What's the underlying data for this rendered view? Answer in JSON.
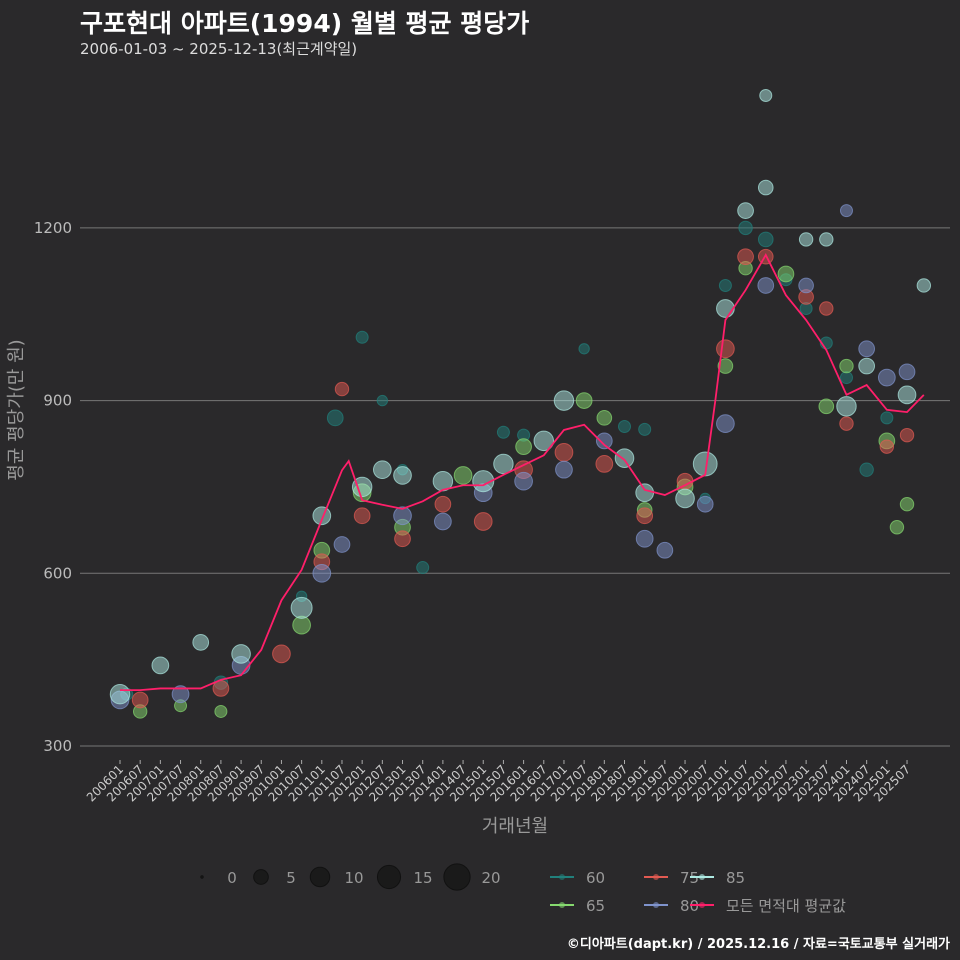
{
  "title": "구포현대 아파트(1994) 월별 평균 평당가",
  "subtitle": "2006-01-03 ~ 2025-12-13(최근계약일)",
  "caption": "©디아파트(dapt.kr) / 2025.12.16 / 자료=국토교통부 실거래가",
  "chart_data": {
    "type": "scatter",
    "title": "구포현대 아파트(1994) 월별 평균 평당가",
    "xlabel": "거래년월",
    "ylabel": "평균 평당가(만 원)",
    "ylim": [
      270,
      1450
    ],
    "yticks": [
      300,
      600,
      900,
      1200
    ],
    "xticks": [
      "200601",
      "200607",
      "200701",
      "200707",
      "200801",
      "200807",
      "200901",
      "200907",
      "201001",
      "201007",
      "201101",
      "201107",
      "201201",
      "201207",
      "201301",
      "201307",
      "201401",
      "201407",
      "201501",
      "201507",
      "201601",
      "201607",
      "201701",
      "201707",
      "201801",
      "201807",
      "201901",
      "201907",
      "202001",
      "202007",
      "202101",
      "202107",
      "202201",
      "202207",
      "202301",
      "202307",
      "202401",
      "202407",
      "202501",
      "202507"
    ],
    "grid": true,
    "size_legend": {
      "title": "",
      "values": [
        0,
        5,
        10,
        15,
        20
      ]
    },
    "colors": {
      "60": "#21807c",
      "65": "#86d96f",
      "75": "#e25a52",
      "80": "#7f93cc",
      "85": "#aeeae3",
      "avg": "#ff1f6a"
    },
    "legend_labels": {
      "60": "60",
      "65": "65",
      "75": "75",
      "80": "80",
      "85": "85",
      "avg": "모든 면적대 평균값"
    },
    "series": [
      {
        "name": "60",
        "points": [
          [
            "200603",
            390,
            3
          ],
          [
            "200807",
            410,
            4
          ],
          [
            "201007",
            560,
            2
          ],
          [
            "201105",
            870,
            6
          ],
          [
            "201201",
            1010,
            3
          ],
          [
            "201207",
            900,
            2
          ],
          [
            "201301",
            780,
            2
          ],
          [
            "201307",
            610,
            3
          ],
          [
            "201507",
            845,
            3
          ],
          [
            "201601",
            840,
            3
          ],
          [
            "201707",
            990,
            2
          ],
          [
            "201807",
            855,
            3
          ],
          [
            "201901",
            850,
            3
          ],
          [
            "202007",
            730,
            2
          ],
          [
            "202101",
            1100,
            3
          ],
          [
            "202107",
            1200,
            4
          ],
          [
            "202201",
            1180,
            5
          ],
          [
            "202207",
            1110,
            3
          ],
          [
            "202301",
            1060,
            3
          ],
          [
            "202307",
            1000,
            3
          ],
          [
            "202401",
            940,
            3
          ],
          [
            "202407",
            780,
            4
          ],
          [
            "202501",
            870,
            3
          ]
        ]
      },
      {
        "name": "65",
        "points": [
          [
            "200607",
            360,
            4
          ],
          [
            "200707",
            370,
            3
          ],
          [
            "200807",
            360,
            3
          ],
          [
            "201007",
            510,
            8
          ],
          [
            "201101",
            640,
            6
          ],
          [
            "201201",
            740,
            8
          ],
          [
            "201301",
            680,
            6
          ],
          [
            "201407",
            770,
            8
          ],
          [
            "201601",
            820,
            6
          ],
          [
            "201707",
            900,
            6
          ],
          [
            "201801",
            870,
            5
          ],
          [
            "201901",
            710,
            5
          ],
          [
            "202001",
            750,
            6
          ],
          [
            "202101",
            960,
            5
          ],
          [
            "202107",
            1130,
            4
          ],
          [
            "202207",
            1120,
            6
          ],
          [
            "202307",
            890,
            5
          ],
          [
            "202401",
            960,
            4
          ],
          [
            "202501",
            830,
            6
          ],
          [
            "202504",
            680,
            4
          ],
          [
            "202507",
            720,
            4
          ]
        ]
      },
      {
        "name": "75",
        "points": [
          [
            "200607",
            380,
            6
          ],
          [
            "200807",
            400,
            6
          ],
          [
            "201001",
            460,
            8
          ],
          [
            "201101",
            620,
            6
          ],
          [
            "201107",
            920,
            4
          ],
          [
            "201201",
            700,
            6
          ],
          [
            "201301",
            660,
            6
          ],
          [
            "201401",
            720,
            6
          ],
          [
            "201501",
            690,
            8
          ],
          [
            "201601",
            780,
            8
          ],
          [
            "201701",
            810,
            8
          ],
          [
            "201801",
            790,
            7
          ],
          [
            "201901",
            700,
            6
          ],
          [
            "202001",
            760,
            6
          ],
          [
            "202101",
            990,
            8
          ],
          [
            "202107",
            1150,
            6
          ],
          [
            "202201",
            1150,
            5
          ],
          [
            "202301",
            1080,
            5
          ],
          [
            "202307",
            1060,
            4
          ],
          [
            "202401",
            860,
            4
          ],
          [
            "202501",
            820,
            4
          ],
          [
            "202507",
            840,
            4
          ]
        ]
      },
      {
        "name": "80",
        "points": [
          [
            "200601",
            380,
            8
          ],
          [
            "200707",
            390,
            7
          ],
          [
            "200901",
            440,
            8
          ],
          [
            "201101",
            600,
            8
          ],
          [
            "201107",
            650,
            6
          ],
          [
            "201301",
            700,
            8
          ],
          [
            "201401",
            690,
            7
          ],
          [
            "201501",
            740,
            8
          ],
          [
            "201601",
            760,
            8
          ],
          [
            "201701",
            780,
            7
          ],
          [
            "201801",
            830,
            6
          ],
          [
            "201901",
            660,
            7
          ],
          [
            "201907",
            640,
            6
          ],
          [
            "202007",
            720,
            6
          ],
          [
            "202101",
            860,
            8
          ],
          [
            "202201",
            1100,
            6
          ],
          [
            "202301",
            1100,
            5
          ],
          [
            "202401",
            1230,
            3
          ],
          [
            "202407",
            990,
            6
          ],
          [
            "202501",
            940,
            7
          ],
          [
            "202507",
            950,
            6
          ]
        ]
      },
      {
        "name": "85",
        "points": [
          [
            "200601",
            390,
            10
          ],
          [
            "200701",
            440,
            7
          ],
          [
            "200801",
            480,
            6
          ],
          [
            "200901",
            460,
            9
          ],
          [
            "201007",
            540,
            12
          ],
          [
            "201101",
            700,
            8
          ],
          [
            "201201",
            750,
            10
          ],
          [
            "201207",
            780,
            8
          ],
          [
            "201301",
            770,
            8
          ],
          [
            "201401",
            760,
            10
          ],
          [
            "201501",
            760,
            12
          ],
          [
            "201507",
            790,
            10
          ],
          [
            "201607",
            830,
            10
          ],
          [
            "201701",
            900,
            10
          ],
          [
            "201807",
            800,
            9
          ],
          [
            "201901",
            740,
            8
          ],
          [
            "202001",
            730,
            9
          ],
          [
            "202007",
            790,
            16
          ],
          [
            "202101",
            1060,
            8
          ],
          [
            "202107",
            1230,
            6
          ],
          [
            "202201",
            1270,
            5
          ],
          [
            "202201",
            1430,
            3
          ],
          [
            "202301",
            1180,
            4
          ],
          [
            "202307",
            1180,
            4
          ],
          [
            "202401",
            890,
            10
          ],
          [
            "202407",
            960,
            6
          ],
          [
            "202507",
            910,
            8
          ],
          [
            "202512",
            1100,
            4
          ]
        ]
      }
    ],
    "average": [
      [
        "200601",
        397
      ],
      [
        "200607",
        397
      ],
      [
        "200701",
        400
      ],
      [
        "200707",
        400
      ],
      [
        "200801",
        400
      ],
      [
        "200807",
        415
      ],
      [
        "200901",
        423
      ],
      [
        "200907",
        467
      ],
      [
        "201001",
        553
      ],
      [
        "201007",
        606
      ],
      [
        "201101",
        693
      ],
      [
        "201107",
        779
      ],
      [
        "201109",
        795
      ],
      [
        "201201",
        727
      ],
      [
        "201207",
        719
      ],
      [
        "201301",
        712
      ],
      [
        "201307",
        725
      ],
      [
        "201401",
        745
      ],
      [
        "201407",
        753
      ],
      [
        "201501",
        753
      ],
      [
        "201507",
        771
      ],
      [
        "201601",
        788
      ],
      [
        "201607",
        805
      ],
      [
        "201701",
        849
      ],
      [
        "201707",
        858
      ],
      [
        "201801",
        823
      ],
      [
        "201807",
        797
      ],
      [
        "201901",
        745
      ],
      [
        "201907",
        736
      ],
      [
        "202001",
        753
      ],
      [
        "202007",
        771
      ],
      [
        "202010",
        900
      ],
      [
        "202101",
        1040
      ],
      [
        "202107",
        1092
      ],
      [
        "202201",
        1153
      ],
      [
        "202207",
        1083
      ],
      [
        "202301",
        1040
      ],
      [
        "202307",
        988
      ],
      [
        "202401",
        910
      ],
      [
        "202407",
        927
      ],
      [
        "202501",
        884
      ],
      [
        "202507",
        880
      ],
      [
        "202512",
        910
      ]
    ]
  }
}
